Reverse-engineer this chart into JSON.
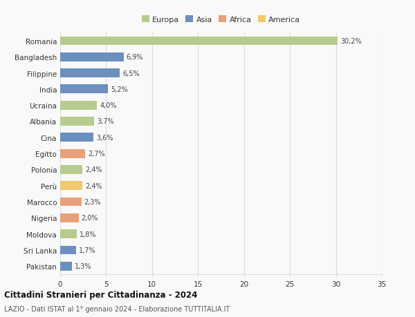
{
  "categories": [
    "Romania",
    "Bangladesh",
    "Filippine",
    "India",
    "Ucraina",
    "Albania",
    "Cina",
    "Egitto",
    "Polonia",
    "Perù",
    "Marocco",
    "Nigeria",
    "Moldova",
    "Sri Lanka",
    "Pakistan"
  ],
  "values": [
    30.2,
    6.9,
    6.5,
    5.2,
    4.0,
    3.7,
    3.6,
    2.7,
    2.4,
    2.4,
    2.3,
    2.0,
    1.8,
    1.7,
    1.3
  ],
  "labels": [
    "30,2%",
    "6,9%",
    "6,5%",
    "5,2%",
    "4,0%",
    "3,7%",
    "3,6%",
    "2,7%",
    "2,4%",
    "2,4%",
    "2,3%",
    "2,0%",
    "1,8%",
    "1,7%",
    "1,3%"
  ],
  "colors": [
    "#b5cc8e",
    "#6b8fbf",
    "#6b8fbf",
    "#6b8fbf",
    "#b5cc8e",
    "#b5cc8e",
    "#6b8fbf",
    "#e8a07a",
    "#b5cc8e",
    "#f0c96e",
    "#e8a07a",
    "#e8a07a",
    "#b5cc8e",
    "#6b8fbf",
    "#6b8fbf"
  ],
  "continent_colors": {
    "Europa": "#b5cc8e",
    "Asia": "#6b8fbf",
    "Africa": "#e8a07a",
    "America": "#f0c96e"
  },
  "title": "Cittadini Stranieri per Cittadinanza - 2024",
  "subtitle": "LAZIO - Dati ISTAT al 1° gennaio 2024 - Elaborazione TUTTITALIA.IT",
  "xlim": [
    0,
    35
  ],
  "xticks": [
    0,
    5,
    10,
    15,
    20,
    25,
    30,
    35
  ],
  "background_color": "#f9f9f9",
  "grid_color": "#dddddd",
  "bar_height": 0.55
}
